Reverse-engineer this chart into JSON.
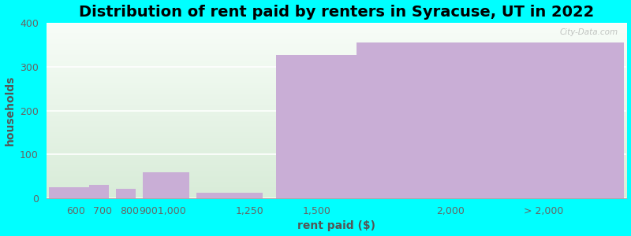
{
  "title": "Distribution of rent paid by renters in Syracuse, UT in 2022",
  "xlabel": "rent paid ($)",
  "ylabel": "households",
  "background_color": "#00FFFF",
  "bar_color": "#c9aed6",
  "bar_edge_color": "none",
  "categories": [
    "600",
    "700",
    "800",
    "9001,000",
    "1,250",
    "1,500",
    "2,000",
    "> 2,000"
  ],
  "values": [
    25,
    30,
    22,
    60,
    12,
    327,
    355,
    355
  ],
  "bar_lefts": [
    500,
    650,
    750,
    850,
    1050,
    1350,
    1650,
    2050
  ],
  "bar_widths": [
    150,
    75,
    75,
    175,
    250,
    300,
    400,
    600
  ],
  "xlim": [
    490,
    2660
  ],
  "ylim": [
    0,
    400
  ],
  "yticks": [
    0,
    100,
    200,
    300,
    400
  ],
  "xtick_positions": [
    600,
    700,
    800,
    925,
    1250,
    1500,
    2000,
    2350
  ],
  "xtick_labels": [
    "600",
    "700",
    "800",
    "9001,000",
    "1,250",
    "1,500",
    "2,000",
    "> 2,000"
  ],
  "title_fontsize": 14,
  "axis_label_fontsize": 10,
  "tick_fontsize": 9,
  "watermark": "City-Data.com",
  "gradient_top_color": "#d8ecd8",
  "gradient_bottom_color": "#f8fdf8"
}
